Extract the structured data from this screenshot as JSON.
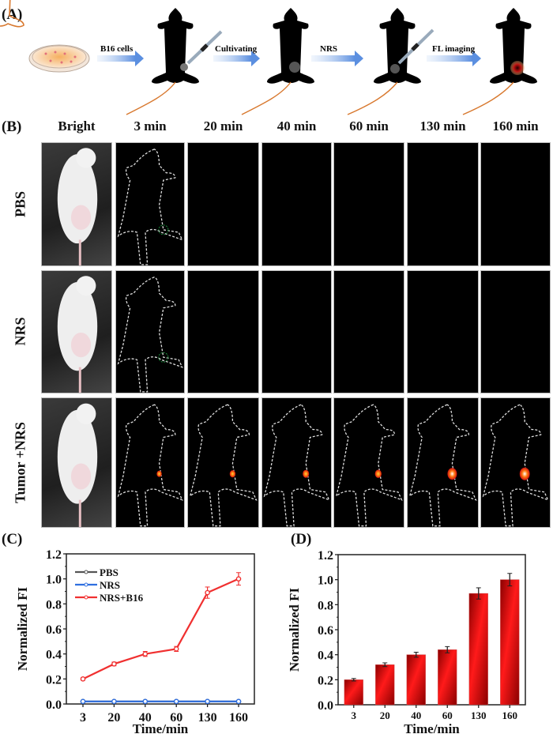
{
  "panels": {
    "a": {
      "label": "(A)",
      "steps": [
        {
          "text": "B16 cells",
          "color": "#3a6fd8"
        },
        {
          "text": "Cultivating",
          "color": "#3a6fd8"
        },
        {
          "text": "NRS",
          "color": "#3a6fd8"
        },
        {
          "text": "FL imaging",
          "color": "#e8262a"
        }
      ]
    },
    "b": {
      "label": "(B)",
      "columns": [
        "Bright",
        "3 min",
        "20 min",
        "40 min",
        "60 min",
        "130 min",
        "160 min"
      ],
      "rows": [
        {
          "label": "PBS",
          "signal": [
            0,
            0,
            0,
            0,
            0,
            0
          ]
        },
        {
          "label": "NRS",
          "signal": [
            0,
            0,
            0,
            0,
            0,
            0
          ]
        },
        {
          "label": "Tumor +NRS",
          "signal": [
            0.2,
            0.32,
            0.4,
            0.44,
            0.89,
            1.0
          ]
        }
      ]
    },
    "c": {
      "label": "(C)"
    },
    "d": {
      "label": "(D)"
    }
  },
  "chart_data": [
    {
      "type": "line",
      "panel": "C",
      "title": "",
      "xlabel": "Time/min",
      "ylabel": "Normalized FI",
      "categories": [
        "3",
        "20",
        "40",
        "60",
        "130",
        "160"
      ],
      "ylim": [
        0,
        1.2
      ],
      "yticks": [
        "0.0",
        "0.2",
        "0.4",
        "0.6",
        "0.8",
        "1.0",
        "1.2"
      ],
      "legend_position": "top-left",
      "series": [
        {
          "name": "PBS",
          "color": "#555555",
          "values": [
            0.02,
            0.02,
            0.02,
            0.02,
            0.02,
            0.02
          ],
          "errors": [
            0,
            0,
            0,
            0,
            0,
            0
          ]
        },
        {
          "name": "NRS",
          "color": "#2f6fe0",
          "values": [
            0.02,
            0.02,
            0.02,
            0.02,
            0.02,
            0.02
          ],
          "errors": [
            0,
            0,
            0,
            0,
            0,
            0
          ]
        },
        {
          "name": "NRS+B16",
          "color": "#f03030",
          "values": [
            0.2,
            0.32,
            0.4,
            0.44,
            0.89,
            1.0
          ],
          "errors": [
            0.01,
            0.015,
            0.02,
            0.02,
            0.045,
            0.05
          ]
        }
      ]
    },
    {
      "type": "bar",
      "panel": "D",
      "title": "",
      "xlabel": "Time/min",
      "ylabel": "Normalized FI",
      "categories": [
        "3",
        "20",
        "40",
        "60",
        "130",
        "160"
      ],
      "ylim": [
        0,
        1.2
      ],
      "yticks": [
        "0.0",
        "0.2",
        "0.4",
        "0.6",
        "0.8",
        "1.0",
        "1.2"
      ],
      "series": [
        {
          "name": "NRS+B16",
          "color": "#d01010",
          "values": [
            0.2,
            0.32,
            0.4,
            0.44,
            0.89,
            1.0
          ],
          "errors": [
            0.01,
            0.015,
            0.02,
            0.025,
            0.045,
            0.05
          ]
        }
      ]
    }
  ]
}
